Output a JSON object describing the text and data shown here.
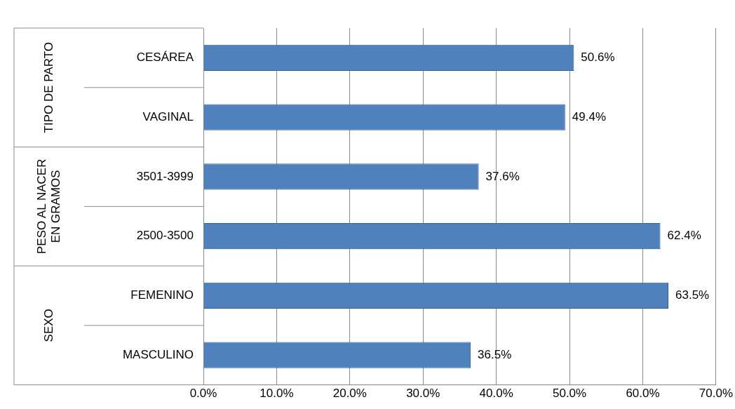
{
  "chart_data": {
    "type": "bar",
    "orientation": "horizontal",
    "categories": [
      "CESÁREA",
      "VAGINAL",
      "3501-3999",
      "2500-3500",
      "FEMENINO",
      "MASCULINO"
    ],
    "values": [
      50.6,
      49.4,
      37.6,
      62.4,
      63.5,
      36.5
    ],
    "value_labels": [
      "50.6%",
      "49.4%",
      "37.6%",
      "62.4%",
      "63.5%",
      "36.5%"
    ],
    "color": "#4f81bd",
    "xlim": [
      0,
      70
    ],
    "xticks": [
      {
        "value": 0,
        "label": "0.0%"
      },
      {
        "value": 10,
        "label": "10.0%"
      },
      {
        "value": 20,
        "label": "20.0%"
      },
      {
        "value": 30,
        "label": "30.0%"
      },
      {
        "value": 40,
        "label": "40.0%"
      },
      {
        "value": 50,
        "label": "50.0%"
      },
      {
        "value": 60,
        "label": "60.0%"
      },
      {
        "value": 70,
        "label": "70.0%"
      }
    ],
    "annotations": [
      "TIPO DE PARTO",
      "PESO AL NACER EN GRAMOS",
      "SEXO"
    ],
    "grid": "x"
  }
}
